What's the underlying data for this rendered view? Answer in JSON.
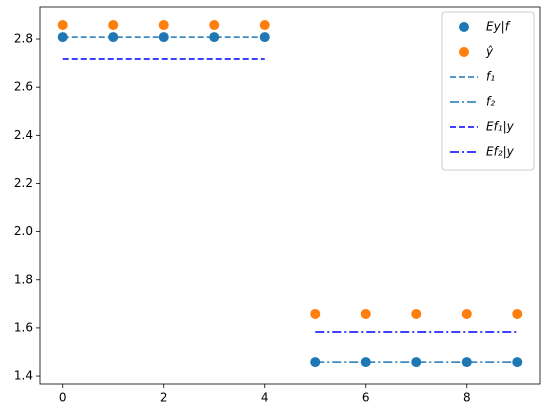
{
  "chart_data": {
    "type": "line",
    "x": [
      0,
      1,
      2,
      3,
      4,
      5,
      6,
      7,
      8,
      9
    ],
    "series": [
      {
        "name": "Ey|f",
        "color": "#1f77b4",
        "style": "marker",
        "values": [
          2.808,
          2.808,
          2.808,
          2.808,
          2.808,
          1.458,
          1.458,
          1.458,
          1.458,
          1.458
        ]
      },
      {
        "name": "ŷ",
        "color": "#ff7f0e",
        "style": "marker",
        "values": [
          2.858,
          2.858,
          2.858,
          2.858,
          2.858,
          1.658,
          1.658,
          1.658,
          1.658,
          1.658
        ]
      },
      {
        "name": "f₁",
        "color": "#1f77b4",
        "style": "dashed",
        "values": [
          2.808,
          2.808,
          2.808,
          2.808,
          2.808,
          null,
          null,
          null,
          null,
          null
        ]
      },
      {
        "name": "f₂",
        "color": "#1f77b4",
        "style": "dashdot",
        "values": [
          null,
          null,
          null,
          null,
          null,
          1.458,
          1.458,
          1.458,
          1.458,
          1.458
        ]
      },
      {
        "name": "Ef₁|y",
        "color": "#0000ff",
        "style": "dashed",
        "values": [
          2.717,
          2.717,
          2.717,
          2.717,
          2.717,
          null,
          null,
          null,
          null,
          null
        ]
      },
      {
        "name": "Ef₂|y",
        "color": "#0000ff",
        "style": "dashdot",
        "values": [
          null,
          null,
          null,
          null,
          null,
          1.583,
          1.583,
          1.583,
          1.583,
          1.583
        ]
      }
    ],
    "xlim": [
      -0.45,
      9.45
    ],
    "xticks": [
      0,
      2,
      4,
      6,
      8
    ],
    "ylim": [
      1.367,
      2.933
    ],
    "yticks": [
      1.4,
      1.6,
      1.8,
      {
        "value": 2,
        "label": "2.0"
      },
      2.2,
      2.4,
      2.6,
      2.8
    ],
    "grid": false,
    "legend": "upper right"
  }
}
